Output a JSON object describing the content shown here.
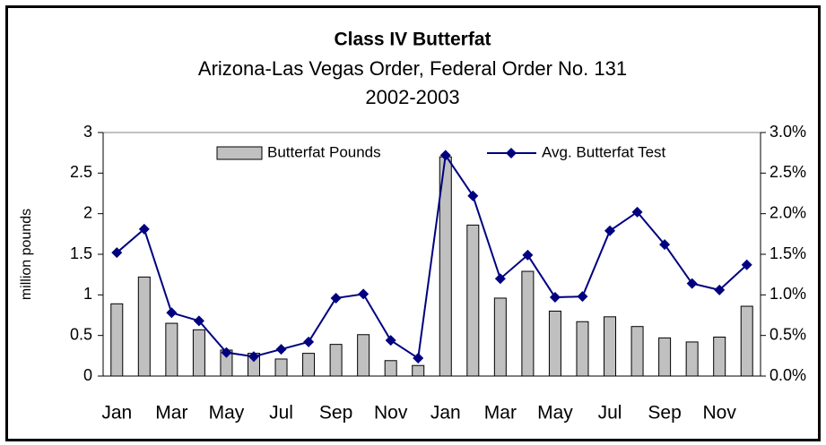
{
  "chart_data": {
    "type": "bar_line",
    "title": "Class IV Butterfat",
    "subtitle": [
      "Arizona-Las Vegas Order, Federal Order No. 131",
      "2002-2003"
    ],
    "ylabel": "million pounds",
    "categories": [
      "Jan",
      null,
      "Mar",
      null,
      "May",
      null,
      "Jul",
      null,
      "Sep",
      null,
      "Nov",
      null,
      "Jan",
      null,
      "Mar",
      null,
      "May",
      null,
      "Jul",
      null,
      "Sep",
      null,
      "Nov",
      null
    ],
    "series": [
      {
        "name": "Butterfat Pounds",
        "color": "#c0c0c0",
        "type": "bar",
        "values": [
          0.89,
          1.22,
          0.65,
          0.57,
          0.32,
          0.28,
          0.21,
          0.28,
          0.39,
          0.51,
          0.19,
          0.13,
          2.7,
          1.86,
          0.96,
          1.29,
          0.8,
          0.67,
          0.73,
          0.61,
          0.47,
          0.42,
          0.48,
          0.86
        ]
      },
      {
        "name": "Avg. Butterfat Test",
        "color": "#000080",
        "type": "line",
        "axis": "y2",
        "values": [
          1.52,
          1.81,
          0.78,
          0.68,
          0.29,
          0.24,
          0.33,
          0.42,
          0.96,
          1.01,
          0.44,
          0.22,
          2.72,
          2.22,
          1.2,
          1.49,
          0.97,
          0.98,
          1.79,
          2.02,
          1.62,
          1.14,
          1.06,
          1.37
        ]
      }
    ],
    "ylim": [
      0,
      3
    ],
    "yticks": [
      0,
      0.5,
      1,
      1.5,
      2,
      2.5,
      3
    ],
    "y2lim": [
      0,
      3
    ],
    "y2ticks": [
      {
        "value": 0,
        "label": "0.0%"
      },
      {
        "value": 0.5,
        "label": "0.5%"
      },
      {
        "value": 1,
        "label": "1.0%"
      },
      {
        "value": 1.5,
        "label": "1.5%"
      },
      {
        "value": 2,
        "label": "2.0%"
      },
      {
        "value": 2.5,
        "label": "2.5%"
      },
      {
        "value": 3,
        "label": "3.0%"
      }
    ],
    "legend": "top"
  }
}
